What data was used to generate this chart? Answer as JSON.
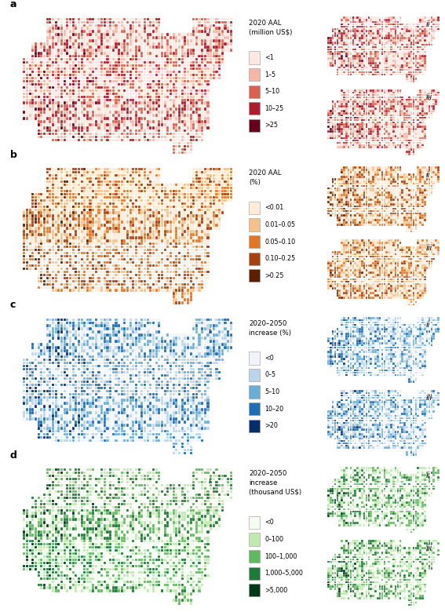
{
  "figure_bg": "#ffffff",
  "row_labels": [
    "a",
    "b",
    "c",
    "d"
  ],
  "legends": [
    {
      "title": "2020 AAL\n(million US$)",
      "labels": [
        "<1",
        "1–5",
        "5–10",
        "10–25",
        ">25"
      ],
      "colors": [
        "#fce8e3",
        "#f5b8a8",
        "#d9614e",
        "#b01c2e",
        "#65001c"
      ]
    },
    {
      "title": "2020 AAL\n(%)",
      "labels": [
        "<0.01",
        "0.01–0.05",
        "0.05–0.10",
        "0.10–0.25",
        ">0.25"
      ],
      "colors": [
        "#fdecd8",
        "#f5c18a",
        "#e07828",
        "#a84010",
        "#5e1f00"
      ]
    },
    {
      "title": "2020–2050\nincrease (%)",
      "labels": [
        "<0",
        "0–5",
        "5–10",
        "10–20",
        ">20"
      ],
      "colors": [
        "#f0f4fa",
        "#bad4eb",
        "#6aaed6",
        "#1f6db5",
        "#082d6b"
      ]
    },
    {
      "title": "2020–2050\nincrease\n(thousand US$)",
      "labels": [
        "<0",
        "0–100",
        "100–1,000",
        "1,000–5,000",
        ">5,000"
      ],
      "colors": [
        "#f4fbf0",
        "#c0e8b0",
        "#60b860",
        "#1e7a38",
        "#003818"
      ]
    }
  ],
  "map_colors_a": {
    "low": "#fce8e3",
    "mid1": "#f5b8a8",
    "mid2": "#d9614e",
    "high": "#b01c2e",
    "extreme": "#65001c",
    "border": "#ffffff",
    "outside": "#d8d8d8"
  },
  "map_colors_b": {
    "low": "#fdecd8",
    "mid1": "#f5c18a",
    "mid2": "#e07828",
    "high": "#a84010",
    "extreme": "#5e1f00",
    "border": "#ffffff",
    "outside": "#d8d8d8"
  },
  "map_colors_c": {
    "low": "#f0f4fa",
    "mid1": "#bad4eb",
    "mid2": "#6aaed6",
    "high": "#1f6db5",
    "extreme": "#082d6b",
    "border": "#ffffff",
    "outside": "#d8d8d8"
  },
  "map_colors_d": {
    "low": "#f4fbf0",
    "mid1": "#c0e8b0",
    "mid2": "#60b860",
    "high": "#1e7a38",
    "extreme": "#003818",
    "border": "#ffffff",
    "outside": "#d8d8d8"
  }
}
